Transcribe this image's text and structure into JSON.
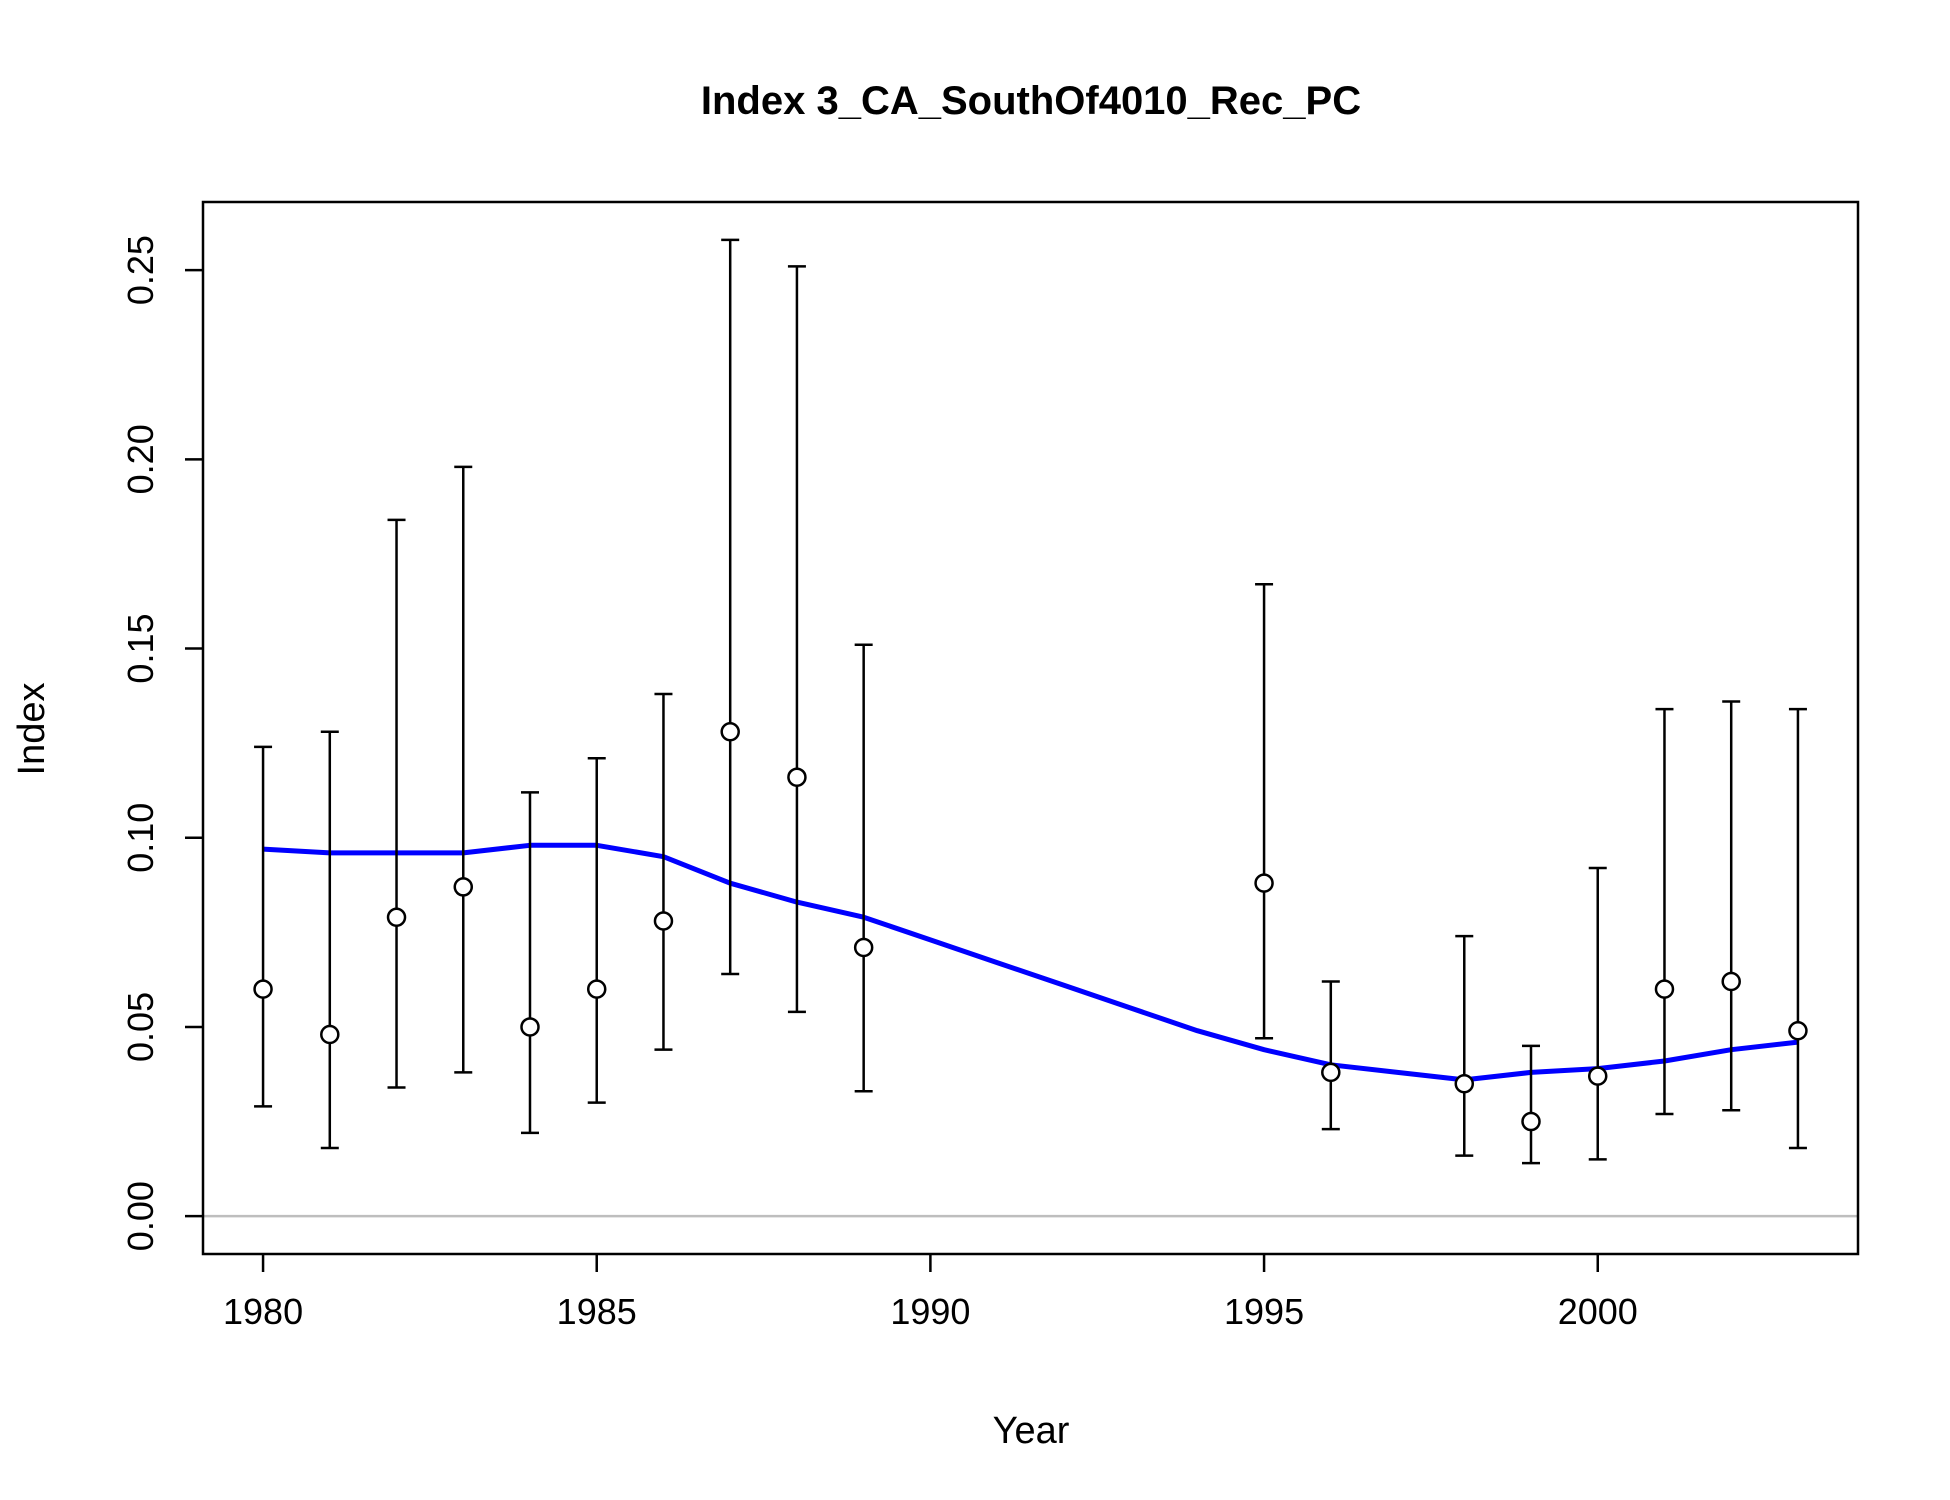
{
  "chart_data": {
    "type": "scatter",
    "title": "Index 3_CA_SouthOf4010_Rec_PC",
    "xlabel": "Year",
    "ylabel": "Index",
    "xlim": [
      1979.1,
      2003.9
    ],
    "ylim": [
      -0.01,
      0.268
    ],
    "x_ticks": [
      "1980",
      "1985",
      "1990",
      "1995",
      "2000"
    ],
    "y_ticks": [
      "0.00",
      "0.05",
      "0.10",
      "0.15",
      "0.20",
      "0.25"
    ],
    "colors": {
      "observed": "#000000",
      "expected": "#0000ff",
      "zero_line": "#bebebe",
      "point_fill": "#ffffff"
    },
    "series": [
      {
        "type": "points-with-error-bars",
        "x": [
          1980,
          1981,
          1982,
          1983,
          1984,
          1985,
          1986,
          1987,
          1988,
          1989,
          1995,
          1996,
          1998,
          1999,
          2000,
          2001,
          2002,
          2003
        ],
        "values": [
          0.06,
          0.048,
          0.079,
          0.087,
          0.05,
          0.06,
          0.078,
          0.128,
          0.116,
          0.071,
          0.088,
          0.038,
          0.035,
          0.025,
          0.037,
          0.06,
          0.062,
          0.049
        ],
        "lower": [
          0.029,
          0.018,
          0.034,
          0.038,
          0.022,
          0.03,
          0.044,
          0.064,
          0.054,
          0.033,
          0.047,
          0.023,
          0.016,
          0.014,
          0.015,
          0.027,
          0.028,
          0.018
        ],
        "upper": [
          0.124,
          0.128,
          0.184,
          0.198,
          0.112,
          0.121,
          0.138,
          0.258,
          0.251,
          0.151,
          0.167,
          0.062,
          0.074,
          0.045,
          0.092,
          0.134,
          0.136,
          0.134
        ]
      },
      {
        "type": "line",
        "x": [
          1980,
          1981,
          1982,
          1983,
          1984,
          1985,
          1986,
          1987,
          1988,
          1989,
          1990,
          1991,
          1992,
          1993,
          1994,
          1995,
          1996,
          1997,
          1998,
          1999,
          2000,
          2001,
          2002,
          2003
        ],
        "values": [
          0.097,
          0.096,
          0.096,
          0.096,
          0.098,
          0.098,
          0.095,
          0.088,
          0.083,
          0.079,
          0.073,
          0.067,
          0.061,
          0.055,
          0.049,
          0.044,
          0.04,
          0.038,
          0.036,
          0.038,
          0.039,
          0.041,
          0.044,
          0.046
        ]
      }
    ],
    "zero_line": 0,
    "grid": false,
    "legend": "none"
  }
}
